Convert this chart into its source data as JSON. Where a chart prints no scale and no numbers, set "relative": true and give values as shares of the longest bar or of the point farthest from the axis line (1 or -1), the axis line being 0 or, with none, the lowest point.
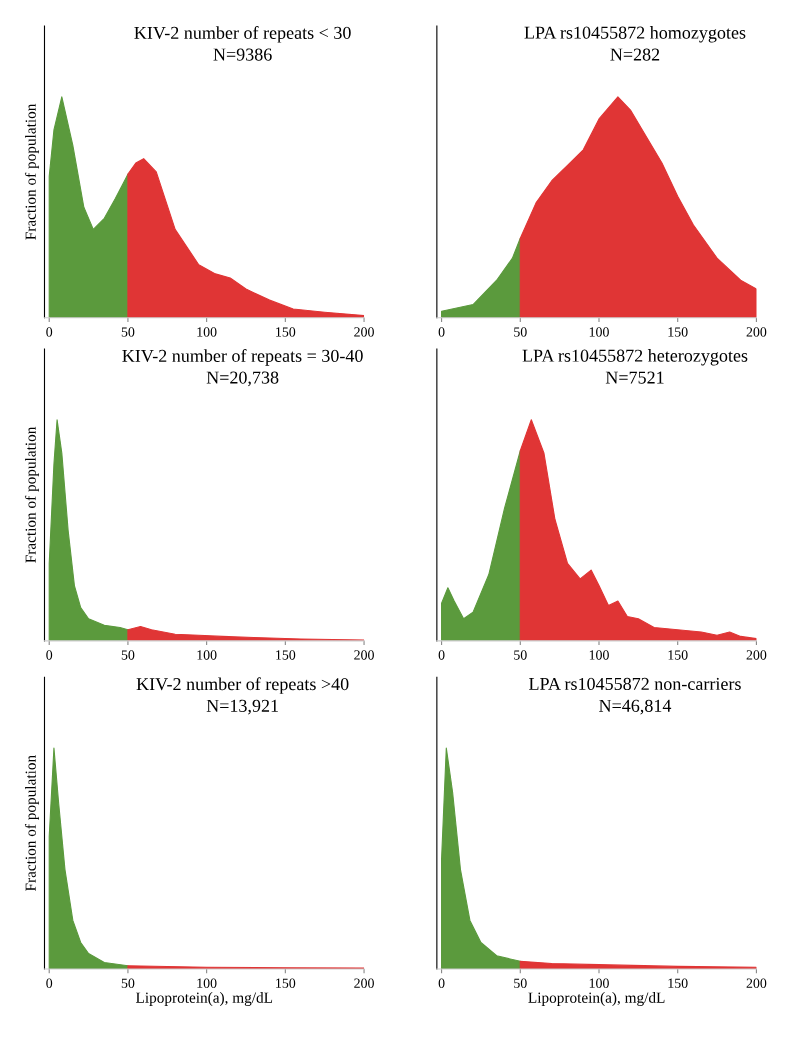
{
  "chart_data": [
    {
      "type": "area",
      "relative": true,
      "ylabel": "Fraction of population",
      "annotations": [
        "KIV-2 number of repeats < 30",
        "N=9386"
      ],
      "xlim": [
        -3,
        200
      ],
      "xticks": [
        0,
        50,
        100,
        150,
        200
      ],
      "series": [
        {
          "color": "#5b9a3d",
          "x": [
            0,
            3,
            8,
            15,
            22,
            28,
            35,
            42,
            50
          ],
          "values": [
            0.64,
            0.85,
            1.0,
            0.78,
            0.5,
            0.4,
            0.45,
            0.54,
            0.65
          ]
        },
        {
          "color": "#e03535",
          "x": [
            50,
            55,
            60,
            68,
            80,
            95,
            105,
            115,
            125,
            140,
            155,
            175,
            200
          ],
          "values": [
            0.65,
            0.7,
            0.72,
            0.66,
            0.4,
            0.24,
            0.2,
            0.18,
            0.13,
            0.08,
            0.04,
            0.025,
            0.01
          ]
        }
      ]
    },
    {
      "type": "area",
      "relative": true,
      "annotations": [
        "LPA rs10455872 homozygotes",
        "N=282"
      ],
      "xlim": [
        -3,
        200
      ],
      "xticks": [
        0,
        50,
        100,
        150,
        200
      ],
      "series": [
        {
          "color": "#5b9a3d",
          "x": [
            0,
            20,
            35,
            45,
            50
          ],
          "values": [
            0.03,
            0.06,
            0.17,
            0.27,
            0.36
          ]
        },
        {
          "color": "#e03535",
          "x": [
            50,
            60,
            70,
            80,
            90,
            100,
            112,
            120,
            130,
            140,
            150,
            160,
            175,
            190,
            200
          ],
          "values": [
            0.36,
            0.52,
            0.62,
            0.69,
            0.76,
            0.9,
            1.0,
            0.94,
            0.82,
            0.7,
            0.55,
            0.42,
            0.27,
            0.17,
            0.13
          ]
        }
      ]
    },
    {
      "type": "area",
      "relative": true,
      "ylabel": "Fraction of population",
      "annotations": [
        "KIV-2 number of repeats = 30-40",
        "N=20,738"
      ],
      "xlim": [
        -3,
        200
      ],
      "xticks": [
        0,
        50,
        100,
        150,
        200
      ],
      "series": [
        {
          "color": "#5b9a3d",
          "x": [
            0,
            3,
            5,
            8,
            12,
            16,
            20,
            25,
            35,
            45,
            50
          ],
          "values": [
            0.35,
            0.8,
            1.0,
            0.85,
            0.5,
            0.25,
            0.15,
            0.1,
            0.07,
            0.06,
            0.05
          ]
        },
        {
          "color": "#e03535",
          "x": [
            50,
            58,
            65,
            80,
            95,
            110,
            130,
            160,
            200
          ],
          "values": [
            0.05,
            0.065,
            0.05,
            0.03,
            0.025,
            0.02,
            0.015,
            0.008,
            0.004
          ]
        }
      ]
    },
    {
      "type": "area",
      "relative": true,
      "annotations": [
        "LPA rs10455872 heterozygotes",
        "N=7521"
      ],
      "xlim": [
        -3,
        200
      ],
      "xticks": [
        0,
        50,
        100,
        150,
        200
      ],
      "series": [
        {
          "color": "#5b9a3d",
          "x": [
            0,
            4,
            8,
            14,
            20,
            30,
            40,
            50
          ],
          "values": [
            0.17,
            0.24,
            0.18,
            0.1,
            0.13,
            0.3,
            0.6,
            0.86
          ]
        },
        {
          "color": "#e03535",
          "x": [
            50,
            57,
            65,
            72,
            80,
            88,
            95,
            100,
            106,
            112,
            118,
            125,
            135,
            150,
            165,
            175,
            183,
            190,
            200
          ],
          "values": [
            0.86,
            1.0,
            0.85,
            0.55,
            0.35,
            0.28,
            0.32,
            0.25,
            0.16,
            0.18,
            0.11,
            0.1,
            0.06,
            0.05,
            0.04,
            0.025,
            0.04,
            0.02,
            0.01
          ]
        }
      ]
    },
    {
      "type": "area",
      "relative": true,
      "ylabel": "Fraction of population",
      "xlabel": "Lipoprotein(a), mg/dL",
      "annotations": [
        "KIV-2 number of repeats >40",
        "N=13,921"
      ],
      "xlim": [
        -3,
        200
      ],
      "xticks": [
        0,
        50,
        100,
        150,
        200
      ],
      "series": [
        {
          "color": "#5b9a3d",
          "x": [
            0,
            3,
            6,
            10,
            15,
            20,
            25,
            35,
            50
          ],
          "values": [
            0.6,
            1.0,
            0.75,
            0.45,
            0.22,
            0.12,
            0.07,
            0.03,
            0.015
          ]
        },
        {
          "color": "#e03535",
          "x": [
            50,
            100,
            150,
            200
          ],
          "values": [
            0.015,
            0.008,
            0.006,
            0.005
          ]
        }
      ]
    },
    {
      "type": "area",
      "relative": true,
      "xlabel": "Lipoprotein(a), mg/dL",
      "annotations": [
        "LPA rs10455872 non-carriers",
        "N=46,814"
      ],
      "xlim": [
        -3,
        200
      ],
      "xticks": [
        0,
        50,
        100,
        150,
        200
      ],
      "series": [
        {
          "color": "#5b9a3d",
          "x": [
            0,
            3,
            7,
            12,
            18,
            25,
            35,
            50
          ],
          "values": [
            0.5,
            1.0,
            0.8,
            0.45,
            0.22,
            0.12,
            0.06,
            0.035
          ]
        },
        {
          "color": "#e03535",
          "x": [
            50,
            70,
            100,
            150,
            200
          ],
          "values": [
            0.035,
            0.025,
            0.02,
            0.012,
            0.008
          ]
        }
      ]
    }
  ]
}
